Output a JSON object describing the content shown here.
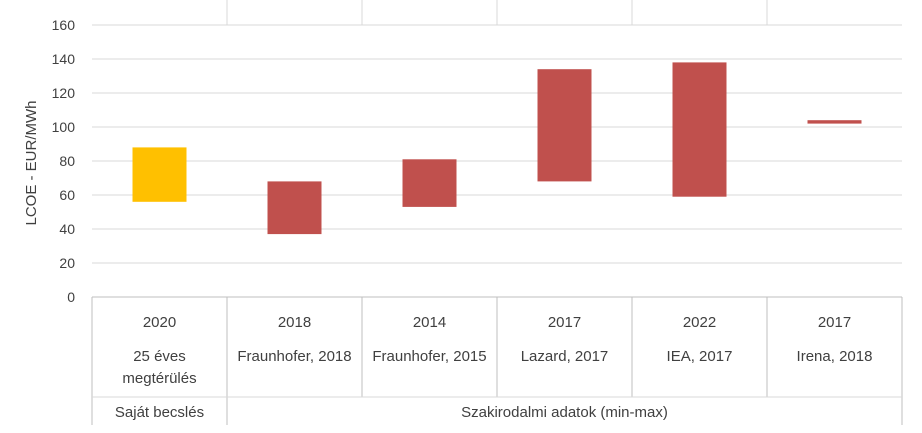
{
  "chart_data": {
    "type": "bar",
    "subtype": "floating-range",
    "ylabel": "LCOE - EUR/MWh",
    "ylim": [
      0,
      160
    ],
    "yticks": [
      0,
      20,
      40,
      60,
      80,
      100,
      120,
      140,
      160
    ],
    "grid": true,
    "legend": "none",
    "categories": [
      {
        "year": "2020",
        "source": [
          "25 éves",
          "megtérülés"
        ],
        "min": 56,
        "max": 88,
        "group": 0,
        "color": "#FFC000"
      },
      {
        "year": "2018",
        "source": [
          "Fraunhofer, 2018"
        ],
        "min": 37,
        "max": 68,
        "group": 1,
        "color": "#C0504D"
      },
      {
        "year": "2014",
        "source": [
          "Fraunhofer, 2015"
        ],
        "min": 53,
        "max": 81,
        "group": 1,
        "color": "#C0504D"
      },
      {
        "year": "2017",
        "source": [
          "Lazard, 2017"
        ],
        "min": 68,
        "max": 134,
        "group": 1,
        "color": "#C0504D"
      },
      {
        "year": "2022",
        "source": [
          "IEA, 2017"
        ],
        "min": 59,
        "max": 138,
        "group": 1,
        "color": "#C0504D"
      },
      {
        "year": "2017",
        "source": [
          "Irena, 2018"
        ],
        "min": 102,
        "max": 104,
        "group": 1,
        "color": "#C0504D"
      }
    ],
    "groups": [
      "Saját becslés",
      "Szakirodalmi adatok (min-max)"
    ]
  }
}
